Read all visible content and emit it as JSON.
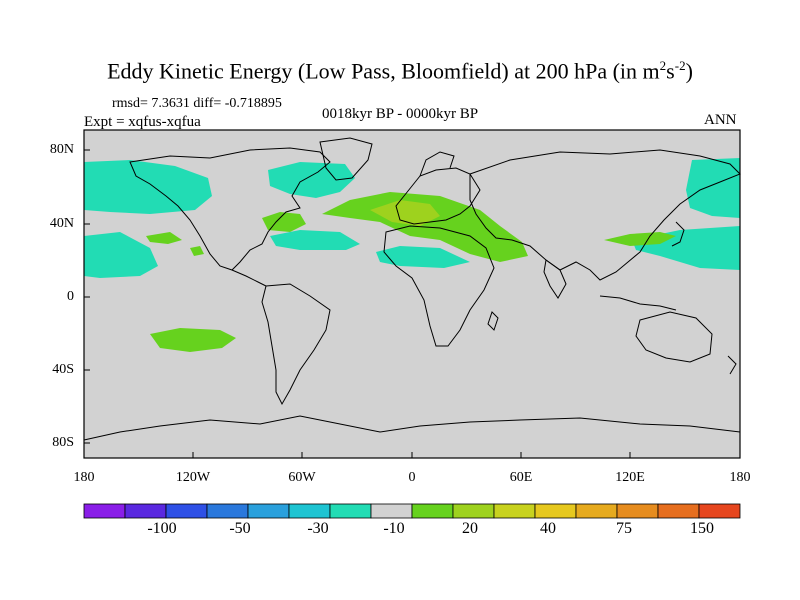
{
  "title_main": "Eddy Kinetic Energy (Low Pass, Bloomfield) at 200 hPa (in m",
  "title_sup1": "2",
  "title_mid": "s",
  "title_sup2": "-2",
  "title_end": ")",
  "rmsd_text": "rmsd= 7.3631 diff= -0.718895",
  "expt_text": "Expt = xqfus-xqfua",
  "period_text": "0018kyr BP - 0000kyr BP",
  "season_text": "ANN",
  "lat_labels": [
    "80N",
    "40N",
    "0",
    "40S",
    "80S"
  ],
  "lon_labels": [
    "180",
    "120W",
    "60W",
    "0",
    "60E",
    "120E",
    "180"
  ],
  "colorbar": {
    "colors": [
      "#8a1ee8",
      "#5a28e0",
      "#2e50e6",
      "#2a78dc",
      "#2aa0dc",
      "#1ec4d2",
      "#22dcb4",
      "#d2d2d2",
      "#66d21e",
      "#9ed21e",
      "#c8d21e",
      "#e6c81e",
      "#e6aa1e",
      "#e68c1e",
      "#e66e1e",
      "#e6461e"
    ],
    "labels": [
      "-100",
      "-50",
      "-30",
      "-10",
      "20",
      "40",
      "75",
      "150"
    ]
  },
  "colors": {
    "ocean_bg": "#d2d2d2",
    "cyan_band": "#22dcb4",
    "green_band": "#66d21e",
    "lightgreen_band": "#9ed21e",
    "coast": "#000000"
  }
}
